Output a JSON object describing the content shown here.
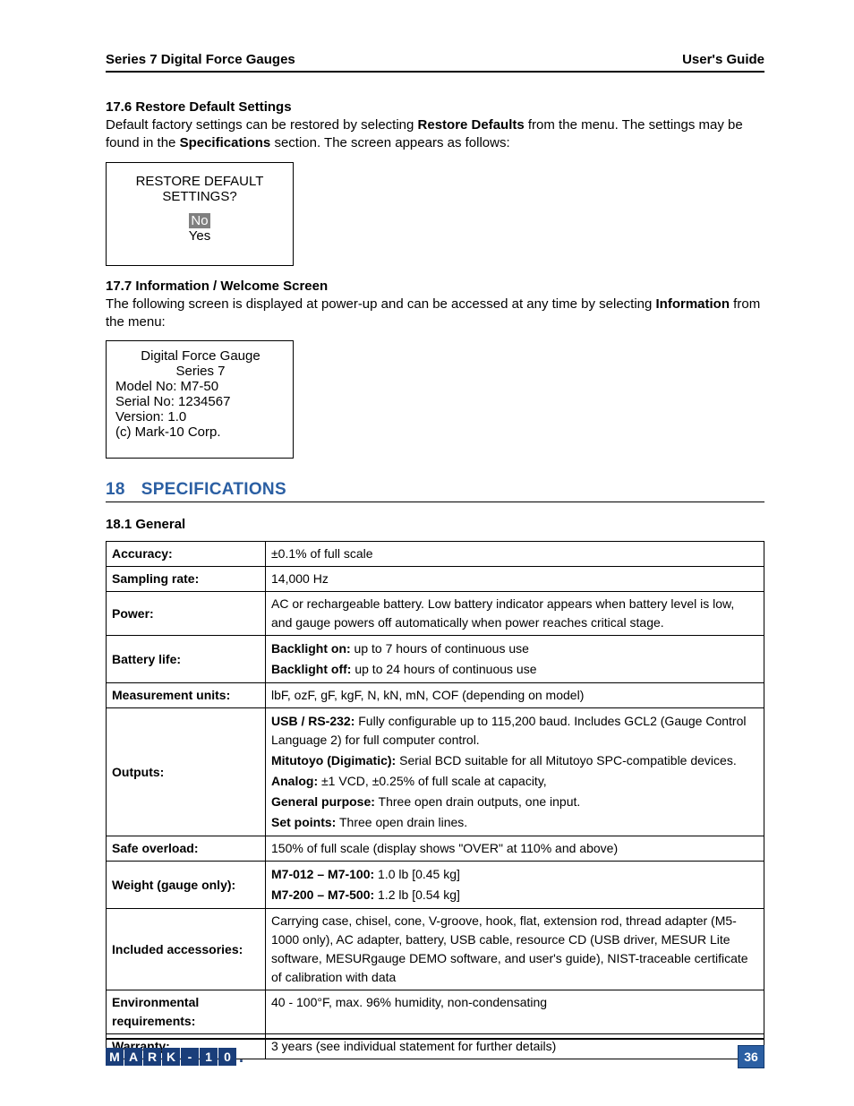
{
  "header": {
    "left": "Series 7 Digital Force Gauges",
    "right": "User's Guide"
  },
  "section_17_6": {
    "heading": "17.6 Restore Default Settings",
    "body_pre": "Default factory settings can be restored by selecting ",
    "body_bold1": "Restore Defaults",
    "body_mid": " from the menu. The settings may be found in the ",
    "body_bold2": "Specifications",
    "body_post": " section. The screen appears as follows:",
    "screen": {
      "line1": "RESTORE DEFAULT",
      "line2": "SETTINGS?",
      "opt_no": "No",
      "opt_yes": "Yes"
    }
  },
  "section_17_7": {
    "heading": "17.7 Information / Welcome Screen",
    "body_pre": "The following screen is displayed at power-up and can be accessed at any time by selecting ",
    "body_bold": "Information",
    "body_post": " from the menu:",
    "screen": {
      "l1": "Digital Force Gauge",
      "l2": "Series 7",
      "l3": "Model No: M7-50",
      "l4": "Serial No: 1234567",
      "l5": "Version: 1.0",
      "l6": "(c) Mark-10 Corp."
    }
  },
  "section_18": {
    "num": "18",
    "title": "SPECIFICATIONS",
    "sub": "18.1 General"
  },
  "spec_table": {
    "rows": [
      {
        "label": "Accuracy:",
        "value_html": "±0.1% of full scale"
      },
      {
        "label": "Sampling rate:",
        "value_html": "14,000 Hz"
      },
      {
        "label": "Power:",
        "value_html": "AC or rechargeable battery. Low battery indicator appears when battery level is low, and gauge powers off automatically when power reaches critical stage."
      },
      {
        "label": "Battery life:",
        "value_html": "<div class='cell-line'><b>Backlight on:</b> up to 7 hours of continuous use</div><div class='cell-line'><b>Backlight off:</b> up to 24 hours of continuous use</div>"
      },
      {
        "label": "Measurement units:",
        "value_html": "lbF, ozF, gF, kgF, N, kN, mN, COF (depending on model)"
      },
      {
        "label": "Outputs:",
        "value_html": "<div class='cell-line'><b>USB / RS-232:</b> Fully configurable up to 115,200 baud. Includes GCL2 (Gauge Control Language 2) for full computer control.</div><div class='cell-line'><b>Mitutoyo (Digimatic):</b> Serial BCD suitable for all Mitutoyo SPC-compatible devices.</div><div class='cell-line'><b>Analog:</b> ±1 VCD, ±0.25% of full scale at capacity,</div><div class='cell-line'><b>General purpose:</b> Three open drain outputs, one input.</div><div class='cell-line'><b>Set points:</b> Three open drain lines.</div>"
      },
      {
        "label": "Safe overload:",
        "value_html": "150% of full scale (display shows \"OVER\" at 110% and above)"
      },
      {
        "label": "Weight (gauge only):",
        "value_html": "<div class='cell-line'><b>M7-012 – M7-100:</b> 1.0 lb [0.45 kg]</div><div class='cell-line'><b>M7-200 – M7-500:</b> 1.2 lb [0.54 kg]</div>"
      },
      {
        "label": "Included accessories:",
        "value_html": "Carrying case, chisel, cone, V-groove, hook, flat, extension rod, thread adapter (M5-1000 only), AC adapter, battery, USB cable, resource CD (USB driver, MESUR Lite software, MESURgauge DEMO software, and user's guide), NIST-traceable certificate of calibration with data"
      },
      {
        "label": "Environmental requirements:",
        "value_html": "40 - 100°F, max. 96% humidity, non-condensating"
      },
      {
        "label": "Warranty:",
        "value_html": "3 years (see individual statement for further details)"
      }
    ]
  },
  "footer": {
    "logo_chars": [
      "M",
      "A",
      "R",
      "K",
      "-",
      "1",
      "0"
    ],
    "page_num": "36"
  },
  "colors": {
    "heading_blue": "#2b5fa3",
    "logo_bg": "#1a3e7a",
    "selection_bg": "#808080"
  }
}
